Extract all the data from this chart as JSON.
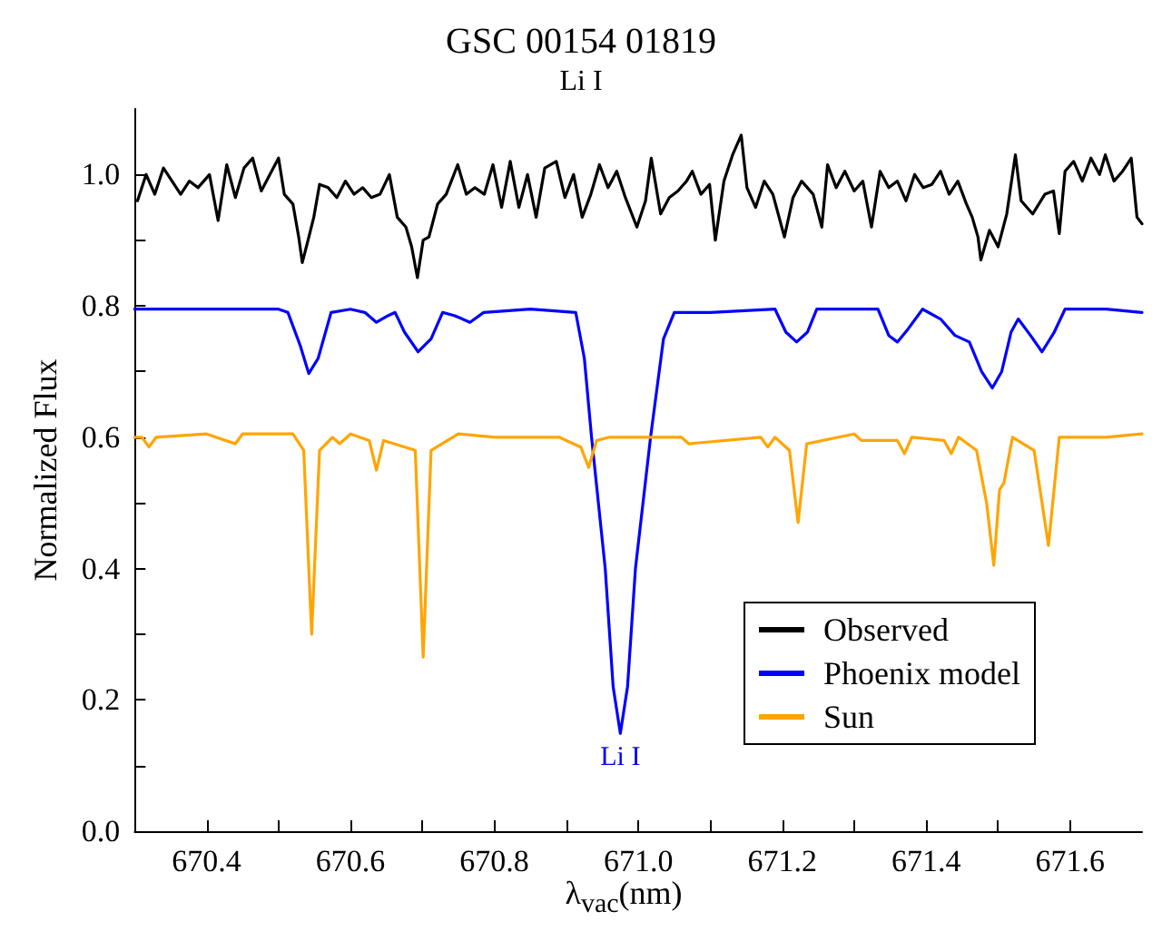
{
  "chart_data": {
    "type": "line",
    "title": "GSC 00154 01819",
    "subtitle": "Li I",
    "xlabel": "λ$_{vac}$(nm)",
    "ylabel": "Normalized Flux",
    "xlim": [
      670.3,
      671.7
    ],
    "ylim": [
      0,
      1.1
    ],
    "xticks": [
      670.4,
      {
        "value": 670.5,
        "label": null
      },
      670.6,
      {
        "value": 670.7,
        "label": null
      },
      670.8,
      {
        "value": 670.9,
        "label": null
      },
      {
        "value": 671,
        "label": "671.0"
      },
      {
        "value": 671.1,
        "label": null
      },
      671.2,
      {
        "value": 671.3,
        "label": null
      },
      671.4,
      {
        "value": 671.5,
        "label": null
      },
      671.6
    ],
    "yticks": [
      {
        "value": 0,
        "label": "0.0"
      },
      {
        "value": 0.1,
        "label": null
      },
      {
        "value": 0.2,
        "label": "0.2"
      },
      {
        "value": 0.3,
        "label": null
      },
      {
        "value": 0.4,
        "label": "0.4"
      },
      {
        "value": 0.5,
        "label": null
      },
      {
        "value": 0.6,
        "label": "0.6"
      },
      {
        "value": 0.7,
        "label": null
      },
      {
        "value": 0.8,
        "label": "0.8"
      },
      {
        "value": 0.9,
        "label": null
      },
      {
        "value": 1,
        "label": "1.0"
      }
    ],
    "grid": false,
    "legend": "bottom right",
    "marker": "none",
    "line_style": "solid",
    "annotations": [
      {
        "text": "Li I",
        "x": 670.975,
        "y": 0.149
      }
    ],
    "series": [
      {
        "name": "Observed",
        "color": "#000000",
        "x": [
          670.304,
          670.316,
          670.328,
          670.34,
          670.352,
          670.364,
          670.376,
          670.388,
          670.404,
          670.416,
          670.428,
          670.44,
          670.452,
          670.464,
          670.476,
          670.488,
          670.5,
          670.508,
          670.52,
          670.528,
          670.533,
          670.541,
          670.549,
          670.557,
          670.569,
          670.581,
          670.593,
          670.605,
          670.617,
          670.629,
          670.641,
          670.654,
          670.665,
          670.677,
          670.685,
          670.693,
          670.701,
          670.709,
          670.721,
          670.733,
          670.749,
          670.761,
          670.773,
          670.786,
          670.798,
          670.81,
          670.822,
          670.834,
          670.846,
          670.858,
          670.87,
          670.886,
          670.898,
          670.91,
          670.922,
          670.934,
          670.946,
          670.958,
          670.97,
          670.982,
          670.998,
          671.01,
          671.018,
          671.031,
          671.043,
          671.055,
          671.067,
          671.075,
          671.087,
          671.099,
          671.107,
          671.119,
          671.131,
          671.143,
          671.151,
          671.163,
          671.175,
          671.187,
          671.203,
          671.215,
          671.227,
          671.243,
          671.255,
          671.263,
          671.275,
          671.287,
          671.3,
          671.312,
          671.324,
          671.336,
          671.348,
          671.36,
          671.372,
          671.384,
          671.396,
          671.408,
          671.42,
          671.432,
          671.444,
          671.456,
          671.464,
          671.472,
          671.476,
          671.488,
          671.5,
          671.512,
          671.524,
          671.532,
          671.548,
          671.565,
          671.577,
          671.585,
          671.593,
          671.605,
          671.617,
          671.629,
          671.641,
          671.649,
          671.661,
          671.673,
          671.685,
          671.693,
          671.7
        ],
        "values": [
          0.96,
          1.0,
          0.97,
          1.01,
          0.99,
          0.97,
          0.99,
          0.98,
          1.0,
          0.93,
          1.015,
          0.965,
          1.01,
          1.025,
          0.975,
          1.0,
          1.025,
          0.97,
          0.955,
          0.905,
          0.866,
          0.9,
          0.935,
          0.985,
          0.98,
          0.965,
          0.99,
          0.97,
          0.98,
          0.965,
          0.97,
          1.0,
          0.935,
          0.92,
          0.89,
          0.843,
          0.9,
          0.905,
          0.955,
          0.97,
          1.015,
          0.97,
          0.98,
          0.97,
          1.015,
          0.95,
          1.02,
          0.95,
          1.0,
          0.935,
          1.01,
          1.02,
          0.965,
          1.0,
          0.935,
          0.97,
          1.015,
          0.98,
          1.005,
          0.965,
          0.92,
          0.96,
          1.025,
          0.94,
          0.965,
          0.975,
          0.99,
          1.005,
          0.97,
          0.985,
          0.9,
          0.99,
          1.03,
          1.06,
          0.98,
          0.95,
          0.99,
          0.97,
          0.905,
          0.965,
          0.99,
          0.97,
          0.92,
          1.015,
          0.98,
          1.005,
          0.975,
          0.99,
          0.92,
          1.005,
          0.98,
          0.99,
          0.96,
          1.0,
          0.98,
          0.985,
          1.005,
          0.97,
          0.99,
          0.955,
          0.935,
          0.905,
          0.87,
          0.915,
          0.89,
          0.94,
          1.03,
          0.96,
          0.94,
          0.97,
          0.975,
          0.91,
          1.005,
          1.02,
          0.99,
          1.025,
          1.0,
          1.03,
          0.99,
          1.005,
          1.025,
          0.935,
          0.925
        ]
      },
      {
        "name": "Phoenix model",
        "color": "#0000ff",
        "x": [
          670.3,
          670.5,
          670.513,
          670.53,
          670.542,
          670.555,
          670.573,
          670.6,
          670.62,
          670.636,
          670.652,
          670.662,
          670.675,
          670.694,
          670.712,
          670.728,
          670.745,
          670.766,
          670.785,
          670.85,
          670.913,
          670.925,
          670.935,
          670.954,
          670.965,
          670.975,
          670.985,
          670.996,
          671.017,
          671.035,
          671.05,
          671.1,
          671.19,
          671.205,
          671.22,
          671.235,
          671.248,
          671.3,
          671.333,
          671.348,
          671.36,
          671.375,
          671.395,
          671.42,
          671.44,
          671.46,
          671.477,
          671.492,
          671.505,
          671.518,
          671.528,
          671.545,
          671.561,
          671.578,
          671.593,
          671.65,
          671.7
        ],
        "values": [
          0.795,
          0.795,
          0.79,
          0.74,
          0.697,
          0.72,
          0.79,
          0.795,
          0.79,
          0.775,
          0.785,
          0.79,
          0.76,
          0.73,
          0.75,
          0.79,
          0.785,
          0.775,
          0.79,
          0.795,
          0.79,
          0.72,
          0.6,
          0.4,
          0.22,
          0.149,
          0.22,
          0.4,
          0.6,
          0.75,
          0.79,
          0.79,
          0.795,
          0.76,
          0.745,
          0.76,
          0.795,
          0.795,
          0.795,
          0.755,
          0.745,
          0.765,
          0.795,
          0.78,
          0.755,
          0.745,
          0.7,
          0.675,
          0.7,
          0.76,
          0.78,
          0.755,
          0.73,
          0.76,
          0.795,
          0.795,
          0.79
        ]
      },
      {
        "name": "Sun",
        "color": "#ffa500",
        "x": [
          670.3,
          670.31,
          670.32,
          670.33,
          670.4,
          670.44,
          670.45,
          670.52,
          670.535,
          670.546,
          670.557,
          670.575,
          670.585,
          670.6,
          670.626,
          670.636,
          670.646,
          670.69,
          670.701,
          670.712,
          670.75,
          670.8,
          670.89,
          670.9,
          670.92,
          670.931,
          670.942,
          670.96,
          671.06,
          671.07,
          671.17,
          671.18,
          671.19,
          671.21,
          671.222,
          671.234,
          671.3,
          671.31,
          671.36,
          671.37,
          671.38,
          671.425,
          671.435,
          671.445,
          671.47,
          671.484,
          671.494,
          671.502,
          671.508,
          671.52,
          671.55,
          671.57,
          671.585,
          671.65,
          671.7
        ],
        "values": [
          0.6,
          0.6,
          0.585,
          0.6,
          0.605,
          0.59,
          0.605,
          0.605,
          0.58,
          0.3,
          0.58,
          0.6,
          0.59,
          0.605,
          0.595,
          0.55,
          0.595,
          0.58,
          0.265,
          0.58,
          0.605,
          0.6,
          0.6,
          0.595,
          0.585,
          0.554,
          0.595,
          0.6,
          0.6,
          0.59,
          0.6,
          0.585,
          0.6,
          0.58,
          0.47,
          0.59,
          0.605,
          0.595,
          0.595,
          0.575,
          0.6,
          0.595,
          0.575,
          0.6,
          0.58,
          0.5,
          0.405,
          0.52,
          0.53,
          0.6,
          0.58,
          0.435,
          0.6,
          0.6,
          0.605
        ]
      }
    ]
  }
}
